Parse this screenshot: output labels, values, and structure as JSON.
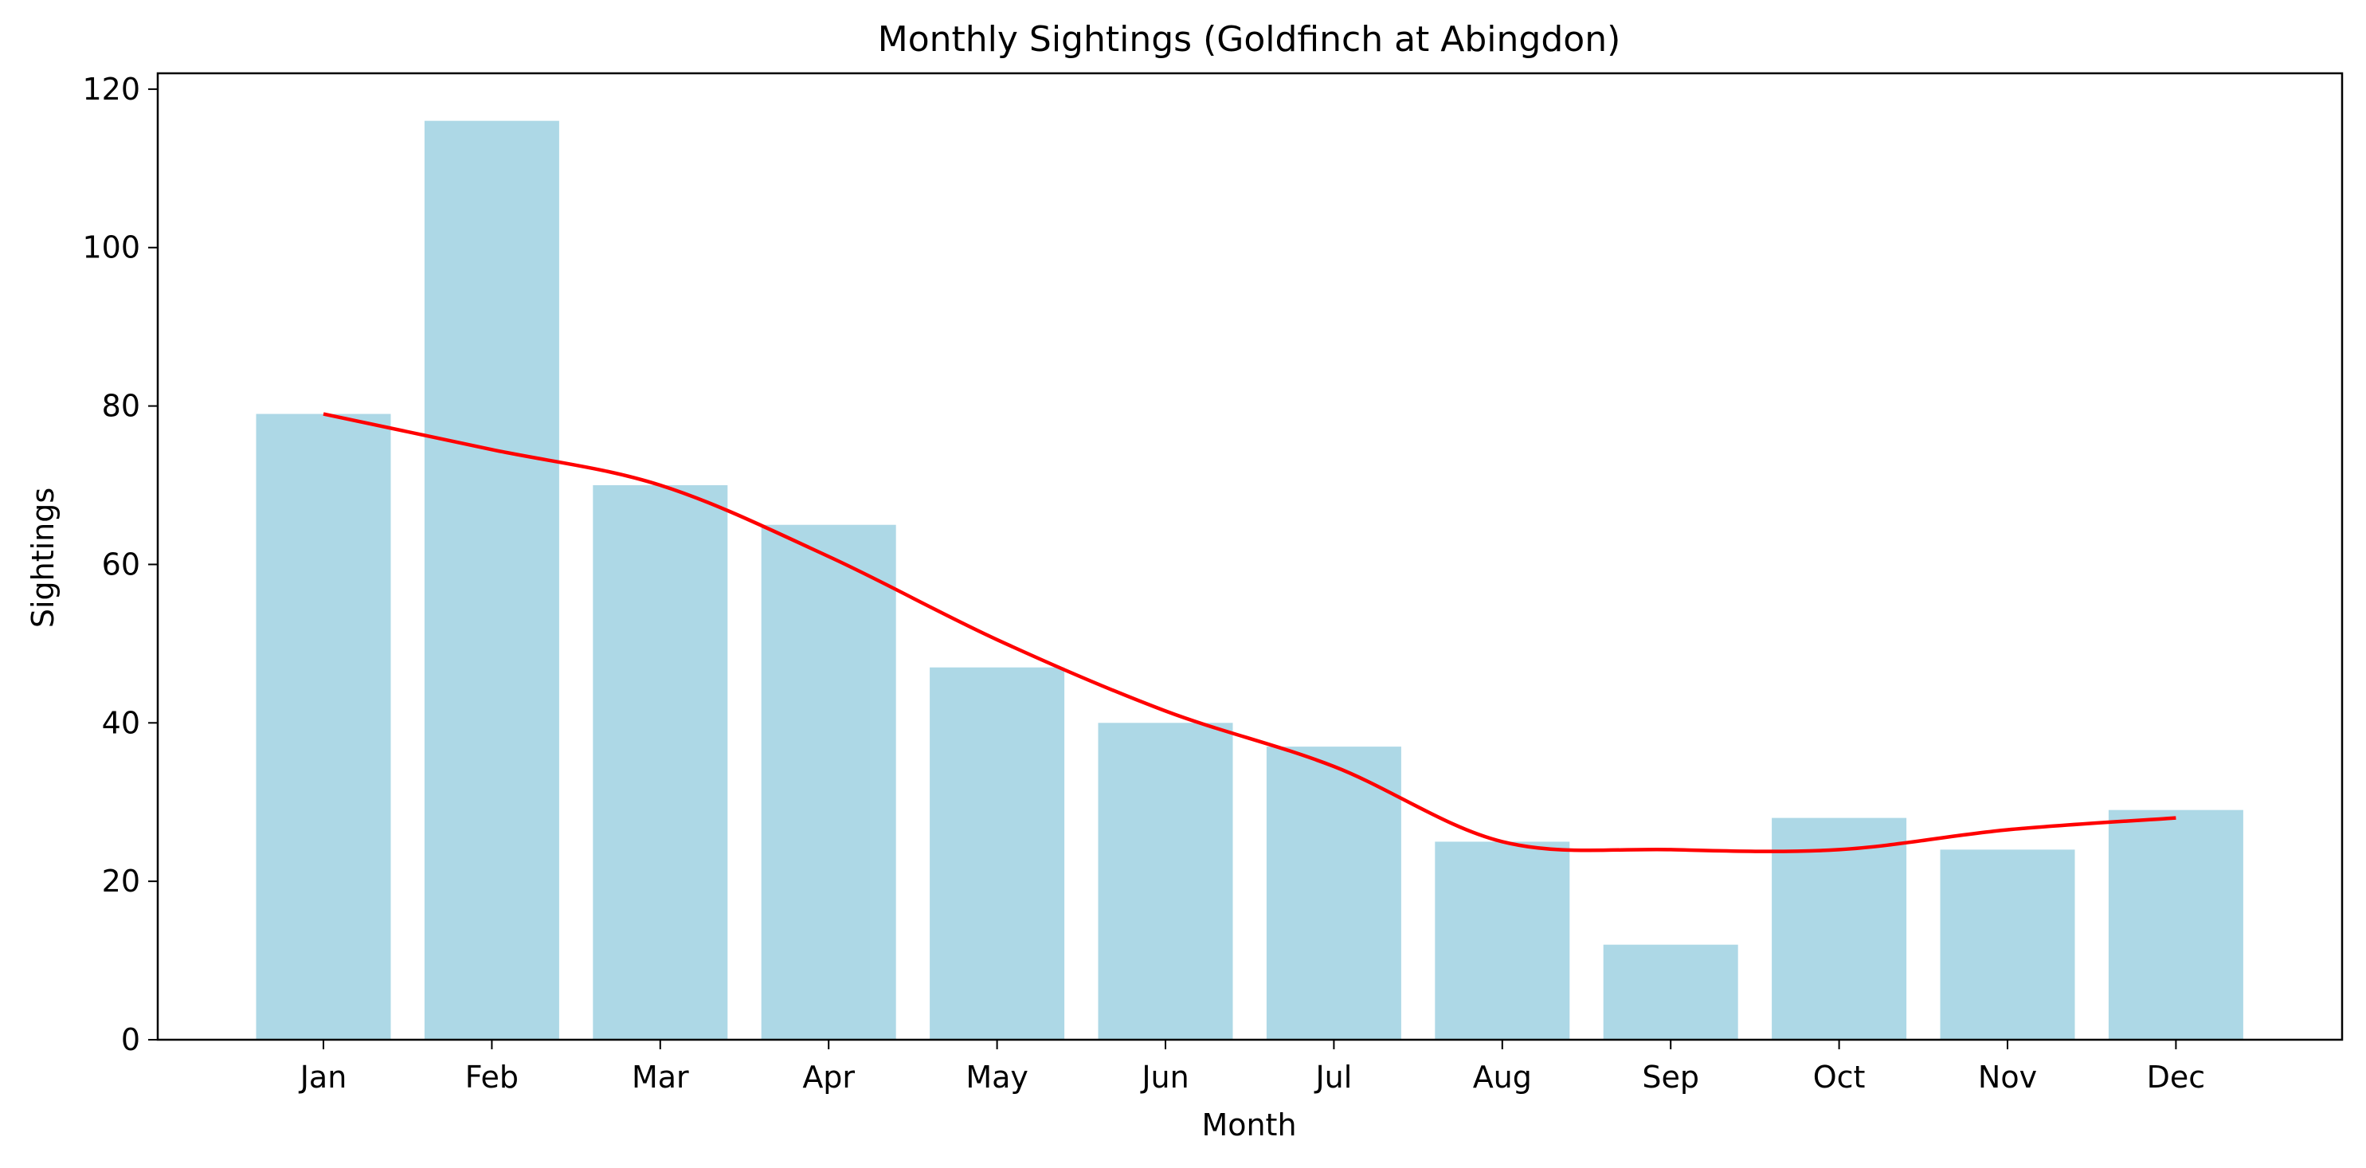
{
  "chart_data": {
    "type": "bar",
    "title": "Monthly Sightings (Goldfinch at Abingdon)",
    "xlabel": "Month",
    "ylabel": "Sightings",
    "categories": [
      "Jan",
      "Feb",
      "Mar",
      "Apr",
      "May",
      "Jun",
      "Jul",
      "Aug",
      "Sep",
      "Oct",
      "Nov",
      "Dec"
    ],
    "series": [
      {
        "type": "bar",
        "values": [
          79,
          116,
          70,
          65,
          47,
          40,
          37,
          25,
          12,
          28,
          24,
          29
        ],
        "color": "#add8e6"
      },
      {
        "type": "line",
        "smooth": true,
        "values": [
          79,
          74.5,
          70,
          61,
          50.5,
          41.5,
          34.5,
          25,
          24,
          24,
          26.5,
          28
        ],
        "color": "#ff0000"
      }
    ],
    "ylim": [
      0,
      122
    ],
    "yticks": [
      0,
      20,
      40,
      60,
      80,
      100,
      120
    ],
    "grid": false,
    "legend": "none"
  }
}
